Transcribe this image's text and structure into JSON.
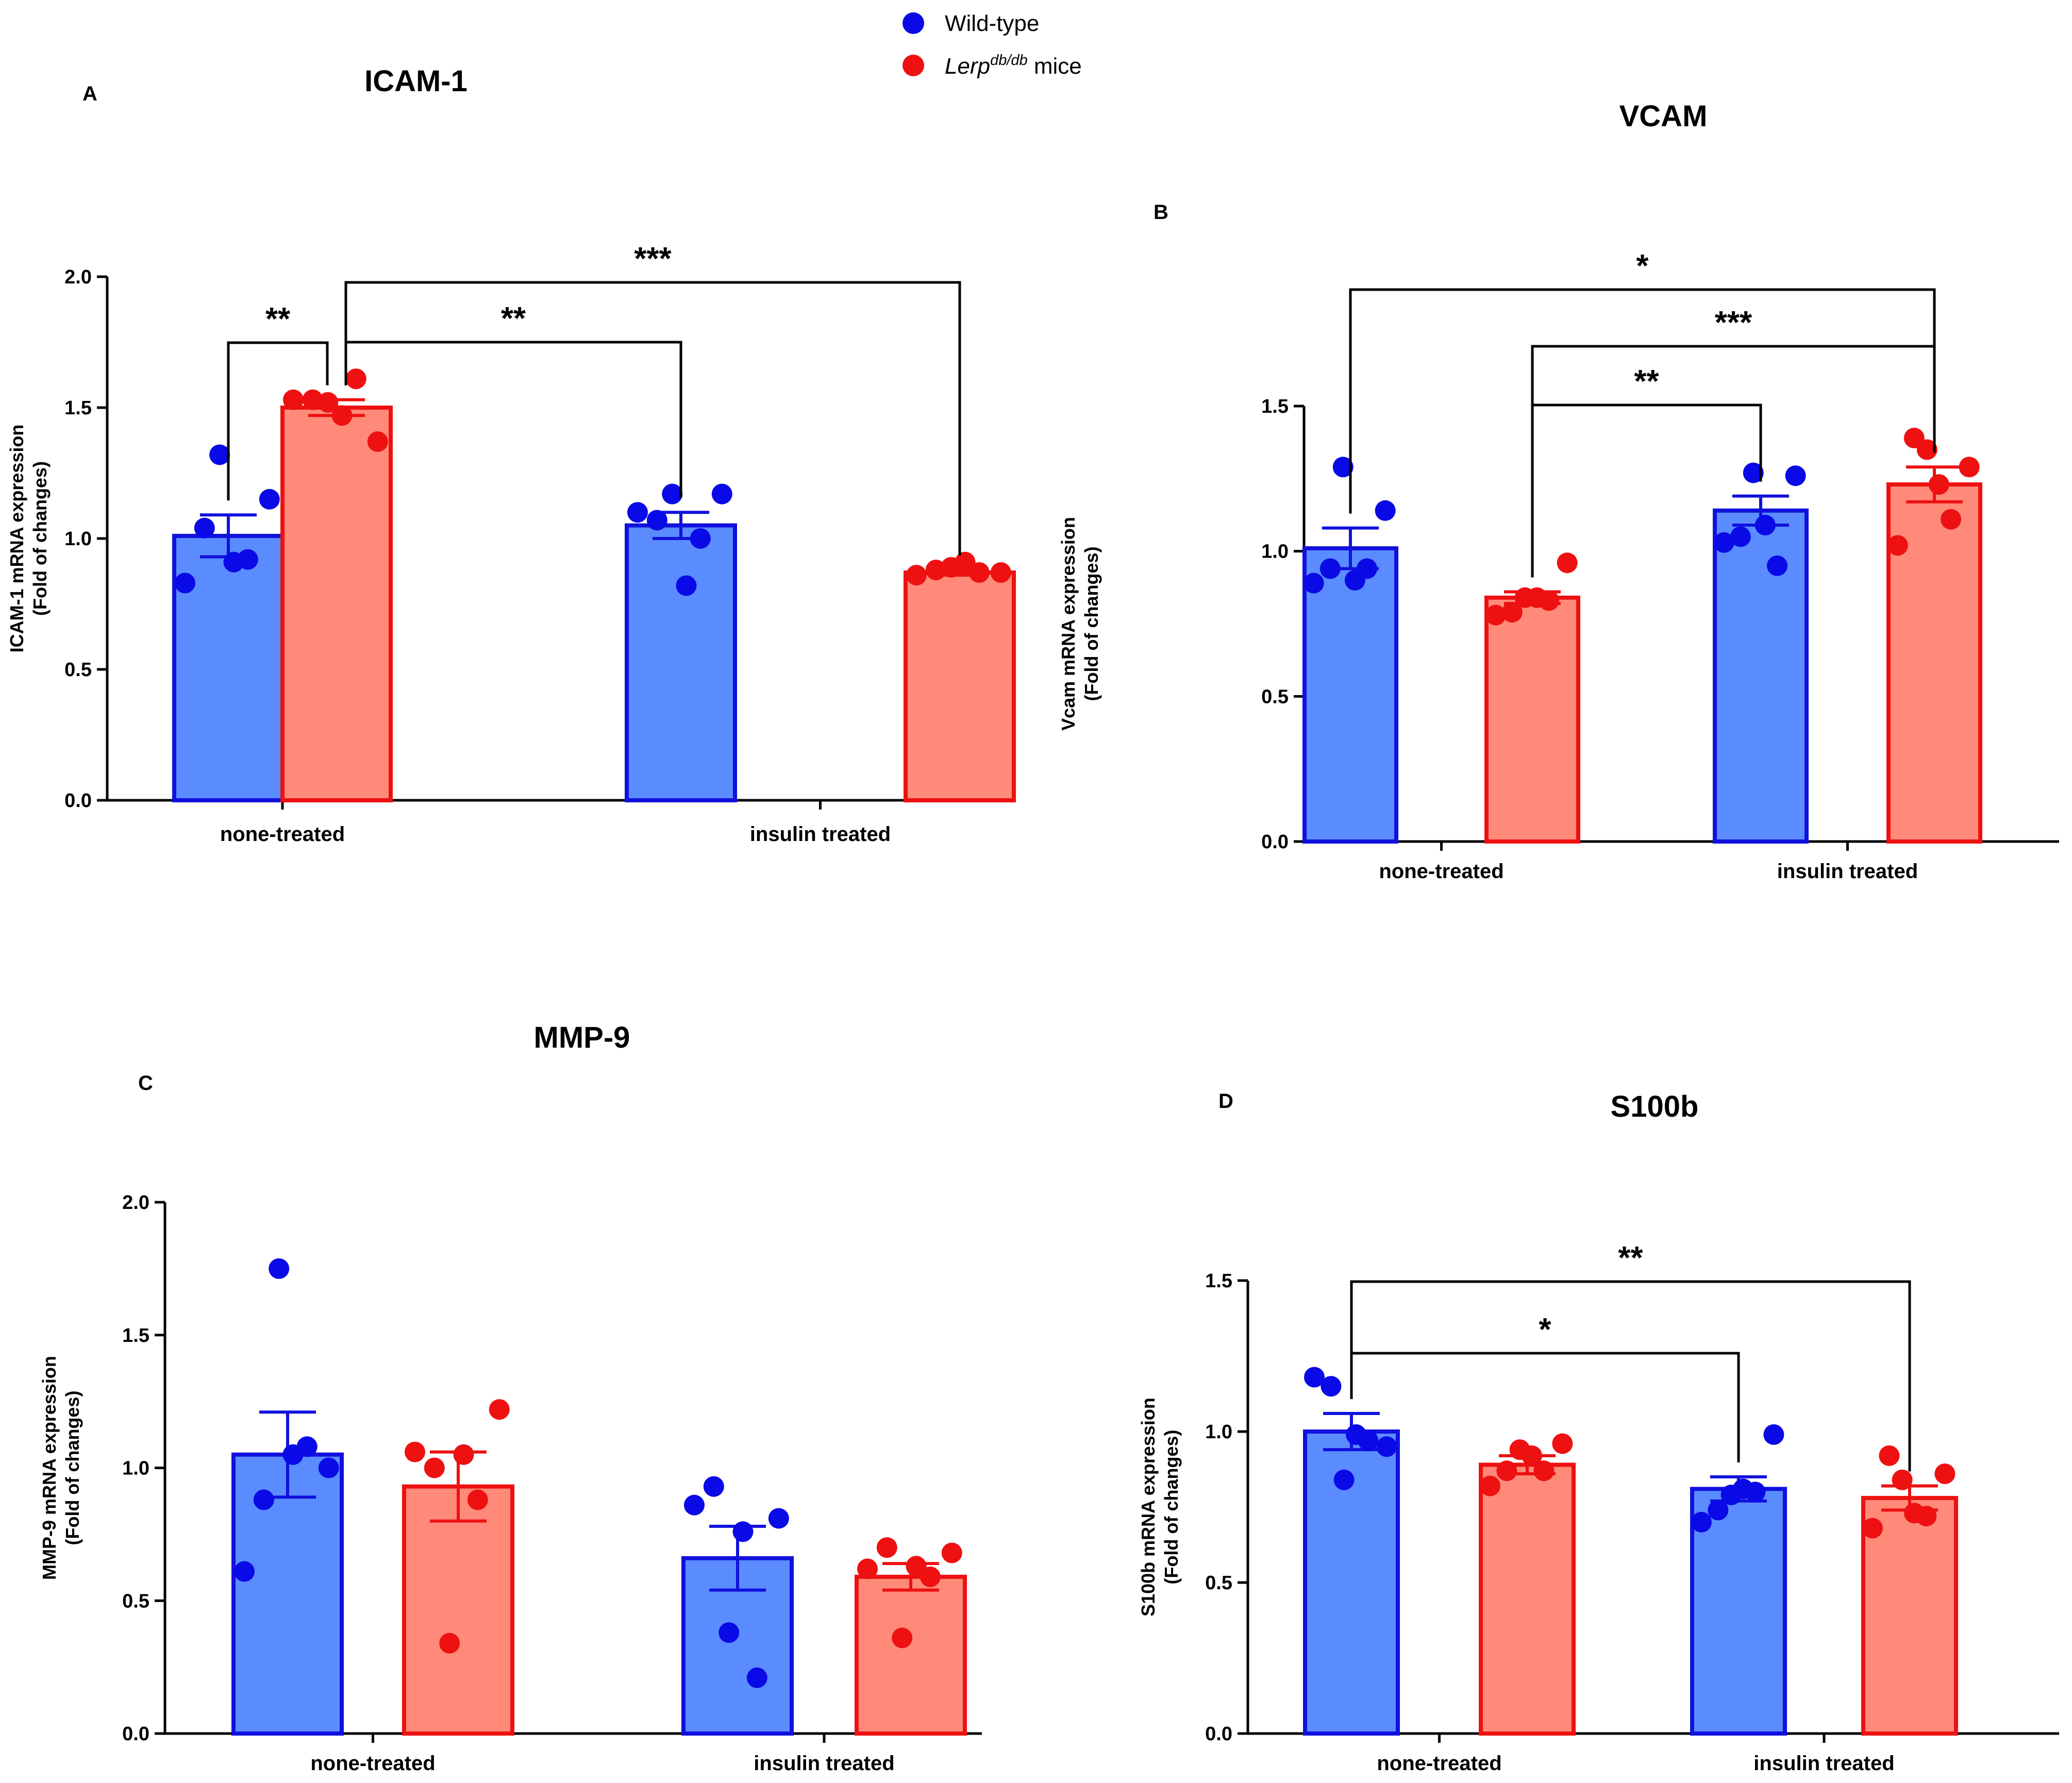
{
  "colors": {
    "wt_bar": "#5a8cff",
    "wt_edge": "#1111dd",
    "wt_point": "#0a0ae6",
    "db_bar": "#ff8a7a",
    "db_edge": "#ee1111",
    "db_point": "#ee1111",
    "axis": "#000000"
  },
  "legend": {
    "items": [
      {
        "label": "Wild-type",
        "color": "#0a0ae6"
      },
      {
        "label_main": "Lerp",
        "label_sup": "db/db",
        "label_tail": " mice",
        "color": "#ee1111"
      }
    ]
  },
  "chart_data": [
    {
      "panel": "A",
      "type": "bar",
      "title": "ICAM-1",
      "ylabel_lines": [
        "ICAM-1  mRNA expression",
        "(Fold of changes)"
      ],
      "xlabel": "",
      "ylim": [
        0,
        2.0
      ],
      "yticks": [
        "0.0",
        "0.5",
        "1.0",
        "1.5",
        "2.0"
      ],
      "categories": [
        "none-treated",
        "insulin treated"
      ],
      "series": [
        {
          "name": "Wild-type",
          "means": [
            1.01,
            1.05
          ],
          "sem": [
            0.08,
            0.05
          ],
          "points": [
            [
              0.83,
              1.32,
              0.92,
              1.15,
              1.04,
              0.91
            ],
            [
              1.1,
              1.17,
              1.0,
              1.17,
              1.07,
              0.82
            ]
          ]
        },
        {
          "name": "Lerp db/db mice",
          "means": [
            1.5,
            0.87
          ],
          "sem": [
            0.03,
            0.01
          ],
          "points": [
            [
              1.53,
              1.52,
              1.61,
              1.37,
              1.53,
              1.47
            ],
            [
              0.86,
              0.89,
              0.87,
              0.87,
              0.88,
              0.91
            ]
          ]
        }
      ],
      "comparisons": [
        {
          "from": [
            0,
            0
          ],
          "to": [
            0,
            1
          ],
          "label": "**"
        },
        {
          "from": [
            0,
            1
          ],
          "to": [
            1,
            0
          ],
          "label": "**"
        },
        {
          "from": [
            0,
            1
          ],
          "to": [
            1,
            1
          ],
          "label": "***"
        }
      ]
    },
    {
      "panel": "B",
      "type": "bar",
      "title": "VCAM",
      "ylabel_lines": [
        "Vcam mRNA expression",
        "(Fold of changes)"
      ],
      "xlabel": "",
      "ylim": [
        0,
        1.5
      ],
      "yticks": [
        "0.0",
        "0.5",
        "1.0",
        "1.5"
      ],
      "categories": [
        "none-treated",
        "insulin treated"
      ],
      "series": [
        {
          "name": "Wild-type",
          "means": [
            1.01,
            1.14
          ],
          "sem": [
            0.07,
            0.05
          ],
          "points": [
            [
              0.89,
              1.29,
              0.94,
              1.14,
              0.94,
              0.9
            ],
            [
              1.03,
              1.27,
              0.95,
              1.26,
              1.05,
              1.09
            ]
          ]
        },
        {
          "name": "Lerp db/db mice",
          "means": [
            0.84,
            1.23
          ],
          "sem": [
            0.02,
            0.06
          ],
          "points": [
            [
              0.78,
              0.84,
              0.83,
              0.96,
              0.79,
              0.84
            ],
            [
              1.02,
              1.35,
              1.11,
              1.29,
              1.39,
              1.23
            ]
          ]
        }
      ],
      "comparisons": [
        {
          "from": [
            0,
            0
          ],
          "to": [
            1,
            1
          ],
          "label": "*"
        },
        {
          "from": [
            0,
            1
          ],
          "to": [
            1,
            1
          ],
          "label": "***"
        },
        {
          "from": [
            0,
            1
          ],
          "to": [
            1,
            0
          ],
          "label": "**"
        }
      ]
    },
    {
      "panel": "C",
      "type": "bar",
      "title": "MMP-9",
      "ylabel_lines": [
        "MMP-9  mRNA expression",
        "(Fold of changes)"
      ],
      "xlabel": "",
      "ylim": [
        0,
        2.0
      ],
      "yticks": [
        "0.0",
        "0.5",
        "1.0",
        "1.5",
        "2.0"
      ],
      "categories": [
        "none-treated",
        "insulin treated"
      ],
      "series": [
        {
          "name": "Wild-type",
          "means": [
            1.05,
            0.66
          ],
          "sem": [
            0.16,
            0.12
          ],
          "points": [
            [
              0.61,
              1.75,
              1.08,
              1.0,
              0.88,
              1.05
            ],
            [
              0.86,
              0.38,
              0.21,
              0.81,
              0.93,
              0.76
            ]
          ]
        },
        {
          "name": "Lerp db/db mice",
          "means": [
            0.93,
            0.59
          ],
          "sem": [
            0.13,
            0.05
          ],
          "points": [
            [
              1.06,
              0.34,
              0.88,
              1.22,
              1.0,
              1.05
            ],
            [
              0.62,
              0.36,
              0.59,
              0.68,
              0.7,
              0.63
            ]
          ]
        }
      ],
      "comparisons": []
    },
    {
      "panel": "D",
      "type": "bar",
      "title": "S100b",
      "ylabel_lines": [
        "S100b mRNA expression",
        "(Fold of changes)"
      ],
      "xlabel": "",
      "ylim": [
        0,
        1.5
      ],
      "yticks": [
        "0.0",
        "0.5",
        "1.0",
        "1.5"
      ],
      "categories": [
        "none-treated",
        "insulin treated"
      ],
      "series": [
        {
          "name": "Wild-type",
          "means": [
            1.0,
            0.81
          ],
          "sem": [
            0.06,
            0.04
          ],
          "points": [
            [
              1.18,
              0.84,
              0.97,
              0.95,
              1.15,
              0.99
            ],
            [
              0.7,
              0.79,
              0.8,
              0.99,
              0.74,
              0.81
            ]
          ]
        },
        {
          "name": "Lerp db/db mice",
          "means": [
            0.89,
            0.78
          ],
          "sem": [
            0.03,
            0.04
          ],
          "points": [
            [
              0.82,
              0.94,
              0.87,
              0.96,
              0.87,
              0.92
            ],
            [
              0.68,
              0.84,
              0.72,
              0.86,
              0.92,
              0.73
            ]
          ]
        }
      ],
      "comparisons": [
        {
          "from": [
            0,
            0
          ],
          "to": [
            1,
            0
          ],
          "label": "*"
        },
        {
          "from": [
            0,
            0
          ],
          "to": [
            1,
            1
          ],
          "label": "**"
        }
      ]
    }
  ]
}
